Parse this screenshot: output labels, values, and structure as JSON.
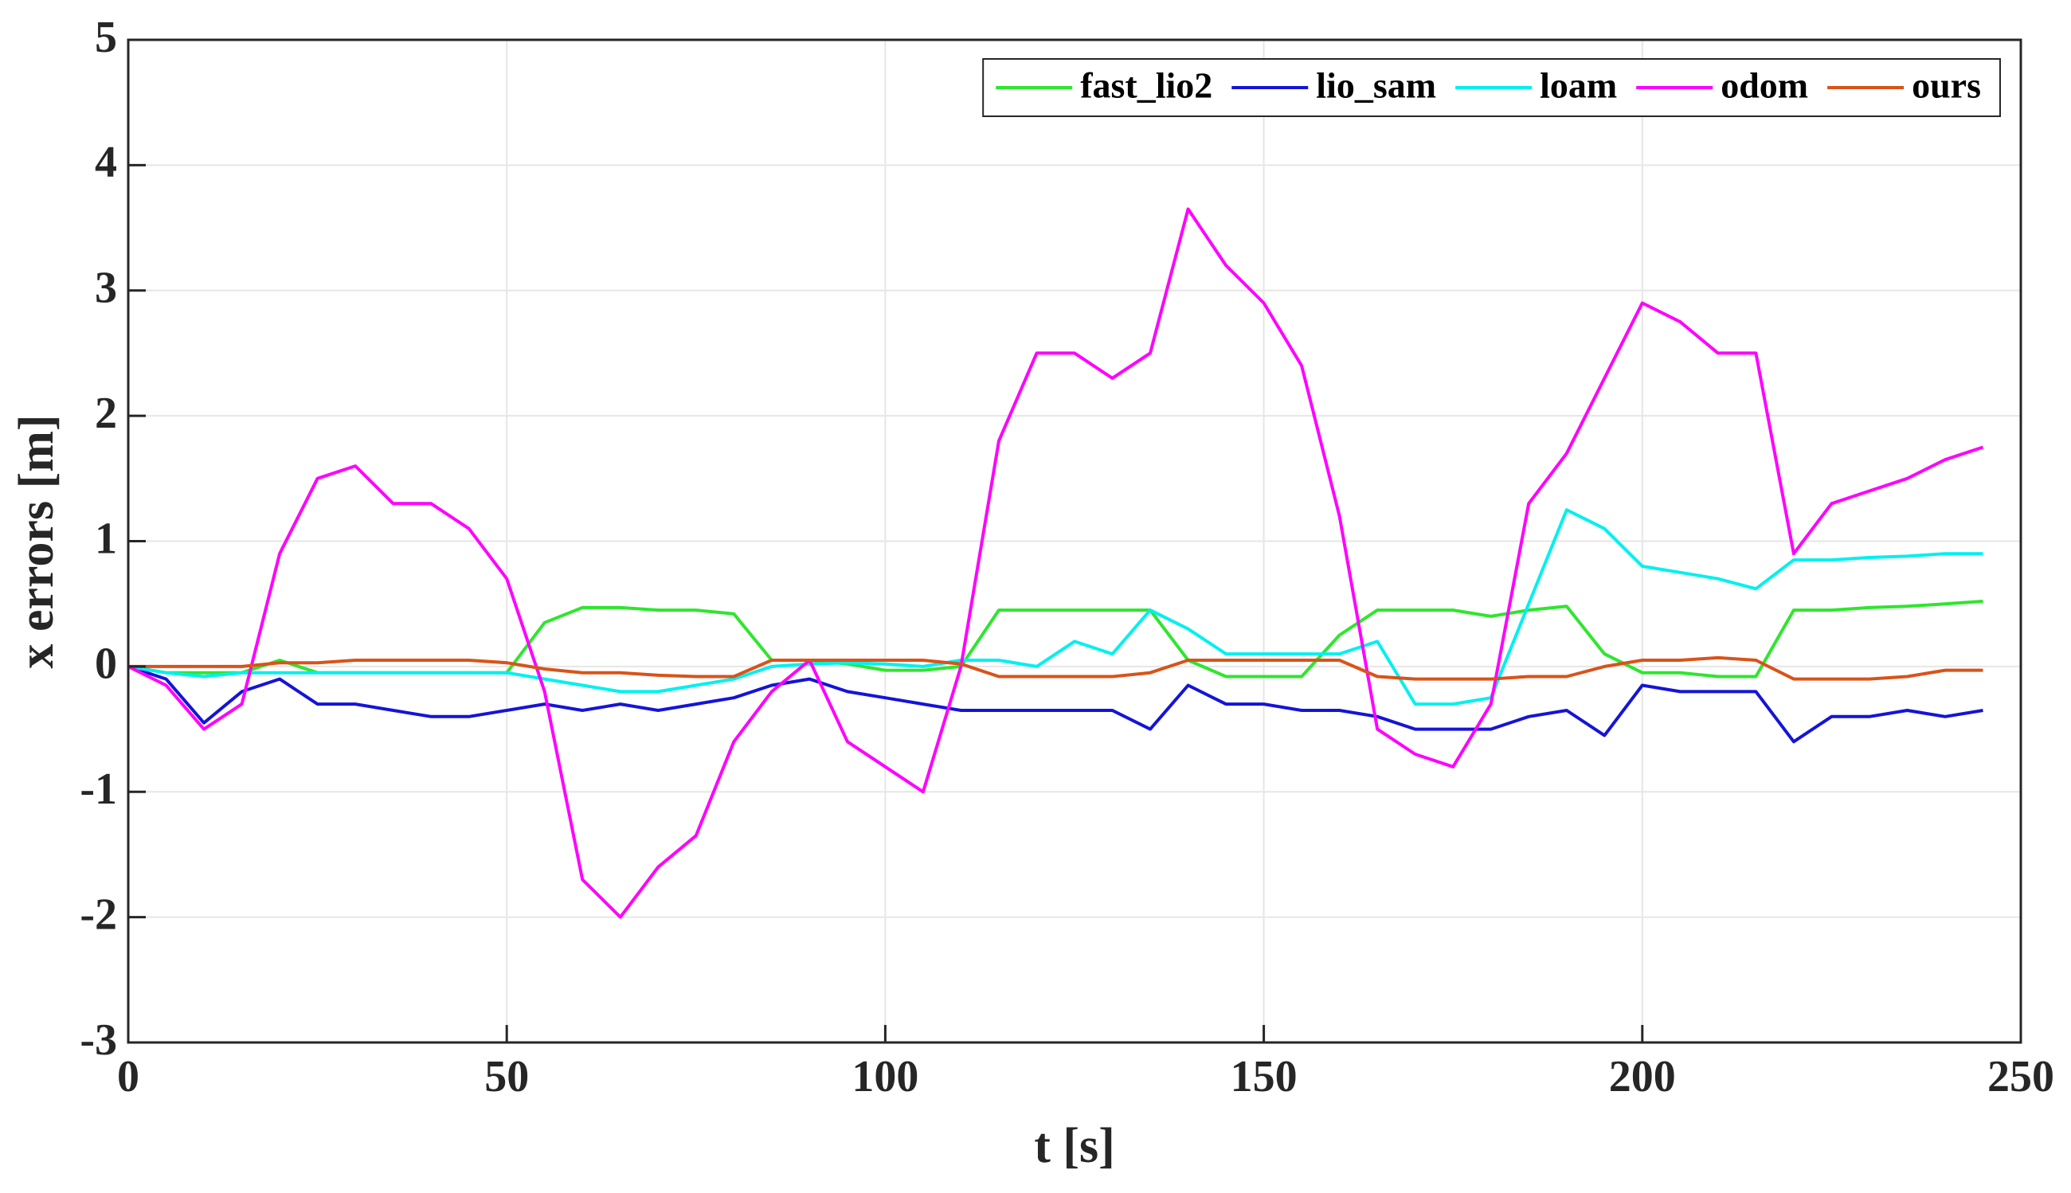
{
  "chart_data": {
    "type": "line",
    "xlabel": "t [s]",
    "ylabel": "x errors [m]",
    "x": [
      0,
      5,
      10,
      15,
      20,
      25,
      30,
      35,
      40,
      45,
      50,
      55,
      60,
      65,
      70,
      75,
      80,
      85,
      90,
      95,
      100,
      105,
      110,
      115,
      120,
      125,
      130,
      135,
      140,
      145,
      150,
      155,
      160,
      165,
      170,
      175,
      180,
      185,
      190,
      195,
      200,
      205,
      210,
      215,
      220,
      225,
      230,
      235,
      240,
      245
    ],
    "series": [
      {
        "name": "fast_lio2",
        "color": "#2ee62e",
        "values": [
          0,
          -0.05,
          -0.05,
          -0.05,
          0.05,
          -0.05,
          -0.05,
          -0.05,
          -0.05,
          -0.05,
          -0.05,
          0.35,
          0.47,
          0.47,
          0.45,
          0.45,
          0.42,
          0.05,
          0.05,
          0.02,
          -0.03,
          -0.03,
          0,
          0.45,
          0.45,
          0.45,
          0.45,
          0.45,
          0.05,
          -0.08,
          -0.08,
          -0.08,
          0.25,
          0.45,
          0.45,
          0.45,
          0.4,
          0.45,
          0.48,
          0.1,
          -0.05,
          -0.05,
          -0.08,
          -0.08,
          0.45,
          0.45,
          0.47,
          0.48,
          0.5,
          0.52
        ]
      },
      {
        "name": "lio_sam",
        "color": "#1414d8",
        "values": [
          0,
          -0.1,
          -0.45,
          -0.2,
          -0.1,
          -0.3,
          -0.3,
          -0.35,
          -0.4,
          -0.4,
          -0.35,
          -0.3,
          -0.35,
          -0.3,
          -0.35,
          -0.3,
          -0.25,
          -0.15,
          -0.1,
          -0.2,
          -0.25,
          -0.3,
          -0.35,
          -0.35,
          -0.35,
          -0.35,
          -0.35,
          -0.5,
          -0.15,
          -0.3,
          -0.3,
          -0.35,
          -0.35,
          -0.4,
          -0.5,
          -0.5,
          -0.5,
          -0.4,
          -0.35,
          -0.55,
          -0.15,
          -0.2,
          -0.2,
          -0.2,
          -0.6,
          -0.4,
          -0.4,
          -0.35,
          -0.4,
          -0.35
        ]
      },
      {
        "name": "loam",
        "color": "#00f0f0",
        "values": [
          0,
          -0.05,
          -0.08,
          -0.05,
          -0.05,
          -0.05,
          -0.05,
          -0.05,
          -0.05,
          -0.05,
          -0.05,
          -0.1,
          -0.15,
          -0.2,
          -0.2,
          -0.15,
          -0.1,
          0,
          0.02,
          0.03,
          0.02,
          0,
          0.05,
          0.05,
          0,
          0.2,
          0.1,
          0.45,
          0.3,
          0.1,
          0.1,
          0.1,
          0.1,
          0.2,
          -0.3,
          -0.3,
          -0.25,
          0.5,
          1.25,
          1.1,
          0.8,
          0.75,
          0.7,
          0.62,
          0.85,
          0.85,
          0.87,
          0.88,
          0.9,
          0.9
        ]
      },
      {
        "name": "odom",
        "color": "#ff00ff",
        "values": [
          0,
          -0.15,
          -0.5,
          -0.3,
          0.9,
          1.5,
          1.6,
          1.3,
          1.3,
          1.1,
          0.7,
          -0.2,
          -1.7,
          -2.0,
          -1.6,
          -1.35,
          -0.6,
          -0.2,
          0.05,
          -0.6,
          -0.8,
          -1.0,
          0.0,
          1.8,
          2.5,
          2.5,
          2.3,
          2.5,
          3.65,
          3.2,
          2.9,
          2.4,
          1.2,
          -0.5,
          -0.7,
          -0.8,
          -0.3,
          1.3,
          1.7,
          2.3,
          2.9,
          2.75,
          2.5,
          2.5,
          0.9,
          1.3,
          1.4,
          1.5,
          1.65,
          1.75
        ]
      },
      {
        "name": "ours",
        "color": "#d95319",
        "values": [
          0,
          0,
          0,
          0,
          0.03,
          0.03,
          0.05,
          0.05,
          0.05,
          0.05,
          0.03,
          -0.02,
          -0.05,
          -0.05,
          -0.07,
          -0.08,
          -0.08,
          0.05,
          0.05,
          0.05,
          0.05,
          0.05,
          0.02,
          -0.08,
          -0.08,
          -0.08,
          -0.08,
          -0.05,
          0.05,
          0.05,
          0.05,
          0.05,
          0.05,
          -0.08,
          -0.1,
          -0.1,
          -0.1,
          -0.08,
          -0.08,
          0,
          0.05,
          0.05,
          0.07,
          0.05,
          -0.1,
          -0.1,
          -0.1,
          -0.08,
          -0.03,
          -0.03
        ]
      }
    ],
    "xlim": [
      0,
      250
    ],
    "xticks": [
      0,
      50,
      100,
      150,
      200,
      250
    ],
    "ylim": [
      -3,
      5
    ],
    "yticks": [
      -3,
      -2,
      -1,
      0,
      1,
      2,
      3,
      4,
      5
    ],
    "grid": true,
    "legend": "northeast"
  }
}
